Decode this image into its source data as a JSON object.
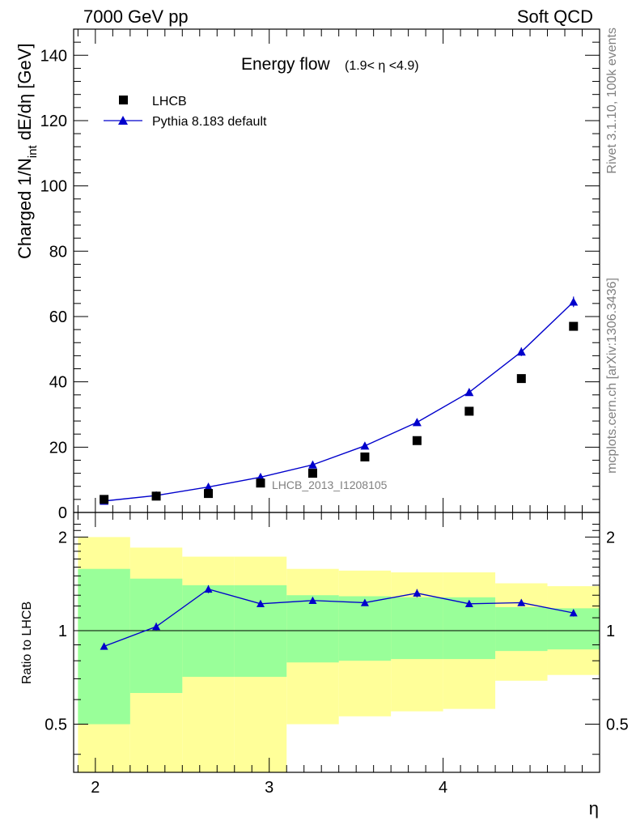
{
  "header": {
    "left": "7000 GeV pp",
    "right": "Soft QCD"
  },
  "side_text": {
    "rivet": "Rivet 3.1.10,  100k events",
    "mcplots": "mcplots.cern.ch [arXiv:1306.3436]"
  },
  "colors": {
    "data": "#000000",
    "mc": "#0000cc",
    "band_inner": "#99ff99",
    "band_outer": "#ffff99",
    "ref_text": "#808080"
  },
  "chart_data": [
    {
      "type": "scatter",
      "panel": "main",
      "title": "Energy flow",
      "title_suffix": "(1.9< η <4.9)",
      "ylabel": "Charged 1/N_int dE/dη [GeV]",
      "ylabel_main": "Charged 1/N",
      "ylabel_sub": "int",
      "ylabel_tail": " dE/dη [GeV]",
      "xlim": [
        1.875,
        4.9
      ],
      "ylim": [
        0,
        148
      ],
      "yticks": [
        0,
        20,
        40,
        60,
        80,
        100,
        120,
        140
      ],
      "ytick_labels": [
        "0",
        "20",
        "40",
        "60",
        "80",
        "100",
        "120",
        "140"
      ],
      "legend": [
        "LHCB",
        "Pythia 8.183 default"
      ],
      "legend_position": "top-left",
      "ref_label": "LHCB_2013_I1208105",
      "series": [
        {
          "name": "LHCB",
          "marker": "square",
          "x": [
            2.05,
            2.35,
            2.65,
            2.95,
            3.25,
            3.55,
            3.85,
            4.15,
            4.45,
            4.75
          ],
          "values": [
            4.0,
            5.0,
            5.8,
            9.0,
            12.0,
            17.0,
            22.0,
            31.0,
            41.0,
            57.0
          ]
        },
        {
          "name": "Pythia 8.183 default",
          "marker": "triangle",
          "x": [
            2.05,
            2.35,
            2.65,
            2.95,
            3.25,
            3.55,
            3.85,
            4.15,
            4.45,
            4.75
          ],
          "values": [
            3.5,
            5.2,
            7.8,
            10.8,
            14.6,
            20.4,
            27.6,
            36.8,
            49.2,
            64.5
          ],
          "errors": [
            0.3,
            0.4,
            0.5,
            0.5,
            0.6,
            0.7,
            0.8,
            1.0,
            1.3,
            1.6
          ]
        }
      ]
    },
    {
      "type": "line",
      "panel": "ratio",
      "ylabel": "Ratio to LHCB",
      "xlabel": "η",
      "xlim": [
        1.875,
        4.9
      ],
      "ylim": [
        0.35,
        2.4
      ],
      "log_y": true,
      "yticks": [
        0.5,
        1,
        2
      ],
      "ytick_labels": [
        "0.5",
        "1",
        "2"
      ],
      "xticks": [
        2,
        3,
        4
      ],
      "xtick_labels": [
        "2",
        "3",
        "4"
      ],
      "bins": [
        1.9,
        2.2,
        2.5,
        2.8,
        3.1,
        3.4,
        3.7,
        4.0,
        4.3,
        4.6,
        4.9
      ],
      "band_inner_low": [
        0.5,
        0.63,
        0.71,
        0.71,
        0.79,
        0.8,
        0.81,
        0.81,
        0.86,
        0.87
      ],
      "band_inner_high": [
        1.58,
        1.47,
        1.4,
        1.4,
        1.3,
        1.29,
        1.28,
        1.28,
        1.19,
        1.18
      ],
      "band_outer_low": [
        0.35,
        0.35,
        0.35,
        0.35,
        0.5,
        0.53,
        0.55,
        0.56,
        0.69,
        0.72
      ],
      "band_outer_high": [
        2.0,
        1.85,
        1.73,
        1.73,
        1.58,
        1.56,
        1.54,
        1.54,
        1.42,
        1.39
      ],
      "reference_line": 1,
      "series": [
        {
          "name": "Pythia 8.183 default",
          "x": [
            2.05,
            2.35,
            2.65,
            2.95,
            3.25,
            3.55,
            3.85,
            4.15,
            4.45,
            4.75
          ],
          "values": [
            0.89,
            1.03,
            1.36,
            1.22,
            1.25,
            1.23,
            1.32,
            1.22,
            1.23,
            1.14
          ],
          "errors": [
            0.02,
            0.03,
            0.04,
            0.03,
            0.03,
            0.03,
            0.04,
            0.03,
            0.03,
            0.03
          ]
        }
      ]
    }
  ]
}
